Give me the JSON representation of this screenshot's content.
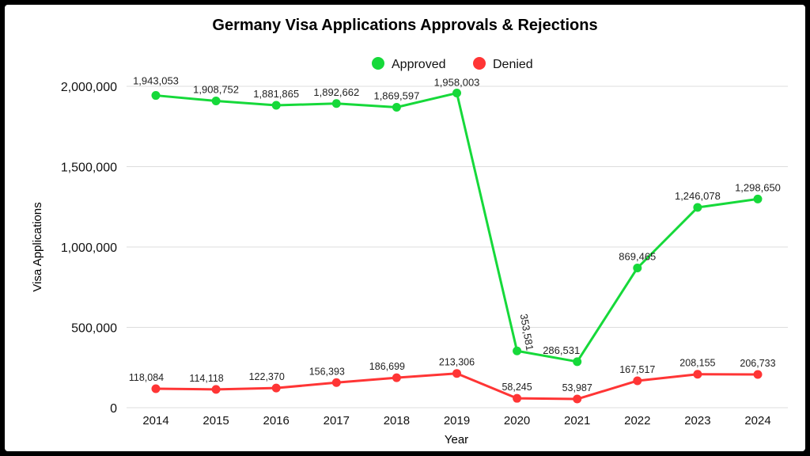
{
  "chart_data": {
    "type": "line",
    "title": "Germany Visa Applications Approvals & Rejections",
    "xlabel": "Year",
    "ylabel": "Visa Applications",
    "ylim": [
      0,
      2000000
    ],
    "yticks": [
      0,
      500000,
      1000000,
      1500000,
      2000000
    ],
    "ytick_labels": [
      "0",
      "500,000",
      "1,000,000",
      "1,500,000",
      "2,000,000"
    ],
    "categories": [
      "2014",
      "2015",
      "2016",
      "2017",
      "2018",
      "2019",
      "2020",
      "2021",
      "2022",
      "2023",
      "2024"
    ],
    "grid": true,
    "legend": "top-center",
    "series": [
      {
        "name": "Approved",
        "color": "#16d93a",
        "values": [
          1943053,
          1908752,
          1881865,
          1892662,
          1869597,
          1958003,
          353581,
          286531,
          869465,
          1246078,
          1298650
        ],
        "labels": [
          "1,943,053",
          "1,908,752",
          "1,881,865",
          "1,892,662",
          "1,869,597",
          "1,958,003",
          "353,581",
          "286,531",
          "869,465",
          "1,246,078",
          "1,298,650"
        ]
      },
      {
        "name": "Denied",
        "color": "#ff3535",
        "values": [
          118084,
          114118,
          122370,
          156393,
          186699,
          213306,
          58245,
          53987,
          167517,
          208155,
          206733
        ],
        "labels": [
          "118,084",
          "114,118",
          "122,370",
          "156,393",
          "186,699",
          "213,306",
          "58,245",
          "53,987",
          "167,517",
          "208,155",
          "206,733"
        ]
      }
    ]
  }
}
